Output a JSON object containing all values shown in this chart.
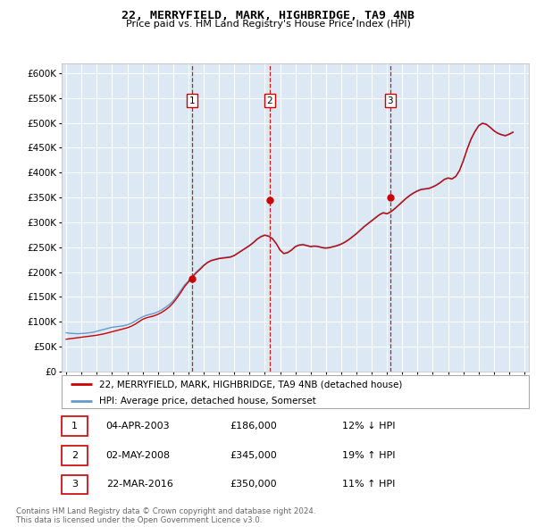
{
  "title1": "22, MERRYFIELD, MARK, HIGHBRIDGE, TA9 4NB",
  "title2": "Price paid vs. HM Land Registry's House Price Index (HPI)",
  "background_color": "#dce9f5",
  "plot_bg": "#dce9f5",
  "grid_color": "#ffffff",
  "red_line_color": "#cc0000",
  "blue_line_color": "#6699cc",
  "vline_color": "#cc0000",
  "ylim": [
    0,
    620000
  ],
  "yticks": [
    0,
    50000,
    100000,
    150000,
    200000,
    250000,
    300000,
    350000,
    400000,
    450000,
    500000,
    550000,
    600000
  ],
  "sales": [
    {
      "date": "2003-04-04",
      "year": 2003.25,
      "price": 186000,
      "label": "1"
    },
    {
      "date": "2008-05-02",
      "year": 2008.33,
      "price": 345000,
      "label": "2"
    },
    {
      "date": "2016-03-22",
      "year": 2016.22,
      "price": 350000,
      "label": "3"
    }
  ],
  "legend_property": "22, MERRYFIELD, MARK, HIGHBRIDGE, TA9 4NB (detached house)",
  "legend_hpi": "HPI: Average price, detached house, Somerset",
  "footer1": "Contains HM Land Registry data © Crown copyright and database right 2024.",
  "footer2": "This data is licensed under the Open Government Licence v3.0.",
  "sale_info": [
    [
      "1",
      "04-APR-2003",
      "£186,000",
      "12% ↓ HPI"
    ],
    [
      "2",
      "02-MAY-2008",
      "£345,000",
      "19% ↑ HPI"
    ],
    [
      "3",
      "22-MAR-2016",
      "£350,000",
      "11% ↑ HPI"
    ]
  ],
  "hpi_data": {
    "years": [
      1995.0,
      1995.25,
      1995.5,
      1995.75,
      1996.0,
      1996.25,
      1996.5,
      1996.75,
      1997.0,
      1997.25,
      1997.5,
      1997.75,
      1998.0,
      1998.25,
      1998.5,
      1998.75,
      1999.0,
      1999.25,
      1999.5,
      1999.75,
      2000.0,
      2000.25,
      2000.5,
      2000.75,
      2001.0,
      2001.25,
      2001.5,
      2001.75,
      2002.0,
      2002.25,
      2002.5,
      2002.75,
      2003.0,
      2003.25,
      2003.5,
      2003.75,
      2004.0,
      2004.25,
      2004.5,
      2004.75,
      2005.0,
      2005.25,
      2005.5,
      2005.75,
      2006.0,
      2006.25,
      2006.5,
      2006.75,
      2007.0,
      2007.25,
      2007.5,
      2007.75,
      2008.0,
      2008.25,
      2008.5,
      2008.75,
      2009.0,
      2009.25,
      2009.5,
      2009.75,
      2010.0,
      2010.25,
      2010.5,
      2010.75,
      2011.0,
      2011.25,
      2011.5,
      2011.75,
      2012.0,
      2012.25,
      2012.5,
      2012.75,
      2013.0,
      2013.25,
      2013.5,
      2013.75,
      2014.0,
      2014.25,
      2014.5,
      2014.75,
      2015.0,
      2015.25,
      2015.5,
      2015.75,
      2016.0,
      2016.25,
      2016.5,
      2016.75,
      2017.0,
      2017.25,
      2017.5,
      2017.75,
      2018.0,
      2018.25,
      2018.5,
      2018.75,
      2019.0,
      2019.25,
      2019.5,
      2019.75,
      2020.0,
      2020.25,
      2020.5,
      2020.75,
      2021.0,
      2021.25,
      2021.5,
      2021.75,
      2022.0,
      2022.25,
      2022.5,
      2022.75,
      2023.0,
      2023.25,
      2023.5,
      2023.75,
      2024.0,
      2024.25
    ],
    "hpi_values": [
      78000,
      77000,
      76500,
      76000,
      76500,
      77000,
      78000,
      79000,
      81000,
      83000,
      85000,
      87000,
      89000,
      90000,
      91000,
      92000,
      94000,
      97000,
      101000,
      106000,
      110000,
      113000,
      115000,
      117000,
      120000,
      124000,
      129000,
      135000,
      142000,
      152000,
      163000,
      174000,
      182000,
      192000,
      200000,
      207000,
      214000,
      220000,
      224000,
      226000,
      228000,
      229000,
      230000,
      231000,
      234000,
      239000,
      244000,
      249000,
      254000,
      260000,
      267000,
      272000,
      275000,
      273000,
      268000,
      258000,
      245000,
      238000,
      240000,
      245000,
      252000,
      255000,
      256000,
      254000,
      252000,
      253000,
      252000,
      250000,
      249000,
      250000,
      252000,
      254000,
      257000,
      261000,
      266000,
      272000,
      278000,
      285000,
      292000,
      298000,
      304000,
      310000,
      316000,
      320000,
      318000,
      322000,
      328000,
      335000,
      342000,
      349000,
      355000,
      360000,
      364000,
      367000,
      368000,
      369000,
      372000,
      376000,
      381000,
      387000,
      390000,
      388000,
      393000,
      405000,
      425000,
      448000,
      468000,
      483000,
      495000,
      500000,
      498000,
      492000,
      485000,
      480000,
      477000,
      475000,
      478000,
      482000
    ],
    "property_values": [
      65000,
      66000,
      67000,
      68000,
      69000,
      70000,
      71000,
      72000,
      73000,
      74500,
      76000,
      78000,
      80000,
      82000,
      84000,
      86000,
      88000,
      91000,
      95000,
      100000,
      105000,
      108000,
      110000,
      112000,
      115000,
      119000,
      124000,
      130000,
      138000,
      148000,
      159000,
      171000,
      180000,
      190000,
      198000,
      205000,
      213000,
      219000,
      223000,
      225000,
      227000,
      228000,
      229000,
      230000,
      233000,
      238000,
      243000,
      248000,
      253000,
      259000,
      266000,
      271000,
      274000,
      272000,
      267000,
      257000,
      244000,
      237000,
      239000,
      244000,
      251000,
      254000,
      255000,
      253000,
      251000,
      252000,
      251000,
      249000,
      248000,
      249000,
      251000,
      253000,
      256000,
      260000,
      265000,
      271000,
      277000,
      284000,
      291000,
      297000,
      303000,
      309000,
      315000,
      319000,
      317000,
      321000,
      327000,
      334000,
      341000,
      348000,
      354000,
      359000,
      363000,
      366000,
      367000,
      368000,
      371000,
      375000,
      380000,
      386000,
      389000,
      387000,
      392000,
      404000,
      424000,
      447000,
      467000,
      482000,
      494000,
      499000,
      497000,
      491000,
      484000,
      479000,
      476000,
      474000,
      477000,
      481000
    ]
  }
}
